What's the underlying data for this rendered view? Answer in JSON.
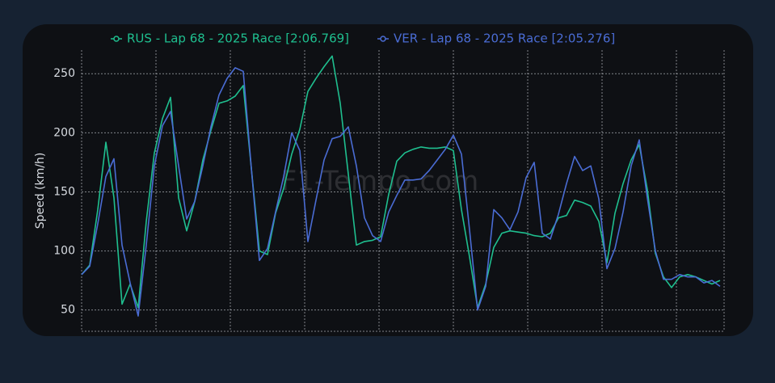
{
  "chart_data": {
    "type": "line",
    "y_label": "Speed (km/h)",
    "watermark": "F1-Tempo.com",
    "ylim": [
      32,
      270
    ],
    "yticks": [
      50,
      100,
      150,
      200,
      250
    ],
    "grid": true,
    "legend": "top",
    "series": [
      {
        "name": "RUS - Lap 68 - 2025 Race [2:06.769]",
        "color": "#1fbf8f",
        "values": [
          80,
          88,
          135,
          192,
          145,
          55,
          72,
          52,
          125,
          183,
          212,
          230,
          145,
          117,
          142,
          177,
          202,
          225,
          227,
          231,
          240,
          170,
          100,
          97,
          132,
          153,
          182,
          203,
          235,
          246,
          256,
          265,
          225,
          165,
          105,
          108,
          109,
          112,
          148,
          176,
          183,
          186,
          188,
          187,
          187,
          188,
          185,
          135,
          95,
          52,
          72,
          103,
          115,
          117,
          116,
          115,
          113,
          112,
          115,
          128,
          130,
          143,
          141,
          138,
          125,
          90,
          132,
          157,
          177,
          190,
          152,
          98,
          78,
          69,
          78,
          80,
          78,
          75,
          72,
          75
        ]
      },
      {
        "name": "VER - Lap 68 - 2025 Race [2:05.276]",
        "color": "#4a6cd4",
        "values": [
          80,
          87,
          123,
          163,
          178,
          105,
          73,
          45,
          105,
          172,
          206,
          218,
          172,
          127,
          142,
          172,
          205,
          232,
          246,
          255,
          252,
          170,
          92,
          102,
          133,
          163,
          200,
          185,
          108,
          143,
          177,
          195,
          197,
          205,
          172,
          128,
          113,
          108,
          133,
          147,
          160,
          160,
          161,
          168,
          177,
          186,
          198,
          182,
          118,
          50,
          70,
          135,
          128,
          118,
          133,
          162,
          175,
          115,
          110,
          131,
          157,
          180,
          168,
          172,
          144,
          85,
          102,
          133,
          172,
          194,
          145,
          100,
          76,
          76,
          80,
          78,
          78,
          73,
          75,
          70
        ]
      }
    ]
  }
}
